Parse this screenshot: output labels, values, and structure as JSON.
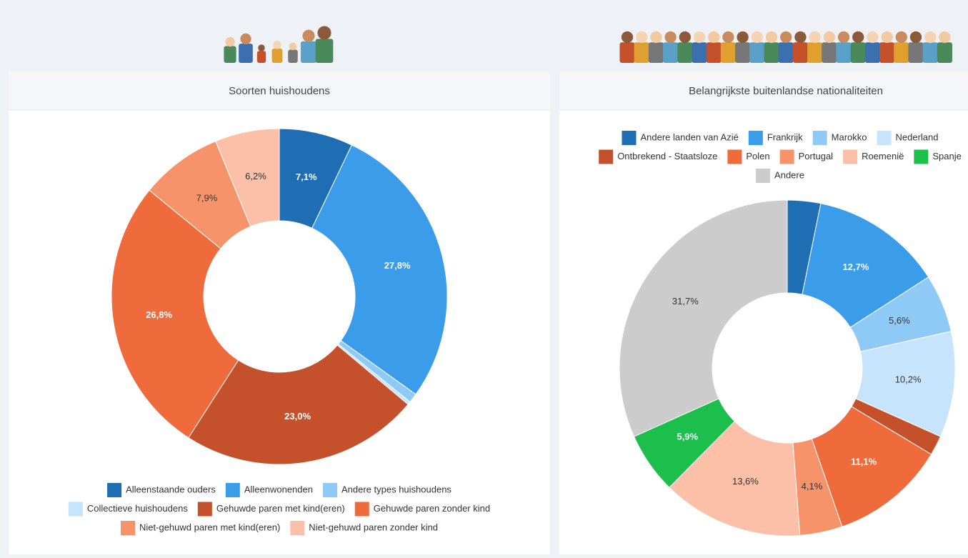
{
  "chart_data": [
    {
      "type": "donut",
      "title": "Soorten huishoudens",
      "categories": [
        "Alleenstaande ouders",
        "Alleenwonenden",
        "Andere types huishoudens",
        "Collectieve huishoudens",
        "Gehuwde paren met kind(eren)",
        "Gehuwde paren zonder kind",
        "Niet-gehuwd paren met kind(eren)",
        "Niet-gehuwd paren zonder kind"
      ],
      "values": [
        7.1,
        27.8,
        0.9,
        0.3,
        23.0,
        26.8,
        7.9,
        6.2
      ],
      "value_labels": [
        "7,1%",
        "27,8%",
        null,
        null,
        "23,0%",
        "26,8%",
        "7,9%",
        "6,2%"
      ],
      "colors": [
        "#1f6db3",
        "#3b9ce9",
        "#8fcaf6",
        "#c6e4fb",
        "#c5512c",
        "#f06b3b",
        "#f7936b",
        "#fbc0a7"
      ],
      "legend": "bottom"
    },
    {
      "type": "donut",
      "title": "Belangrijkste buitenlandse nationaliteiten",
      "categories": [
        "Andere landen van Azië",
        "Frankrijk",
        "Marokko",
        "Nederland",
        "Ontbrekend - Staatsloze",
        "Polen",
        "Portugal",
        "Roemenië",
        "Spanje",
        "Andere"
      ],
      "values": [
        3.2,
        12.7,
        5.6,
        10.2,
        1.9,
        11.1,
        4.1,
        13.6,
        5.9,
        31.7
      ],
      "value_labels": [
        null,
        "12,7%",
        "5,6%",
        "10,2%",
        null,
        "11,1%",
        "4,1%",
        "13,6%",
        "5,9%",
        "31,7%"
      ],
      "colors": [
        "#1f6db3",
        "#3b9ce9",
        "#8fcaf6",
        "#c6e4fb",
        "#c5512c",
        "#f06b3b",
        "#f7936b",
        "#fbc0a7",
        "#1cbf4c",
        "#cccccc"
      ],
      "legend": "top"
    }
  ]
}
